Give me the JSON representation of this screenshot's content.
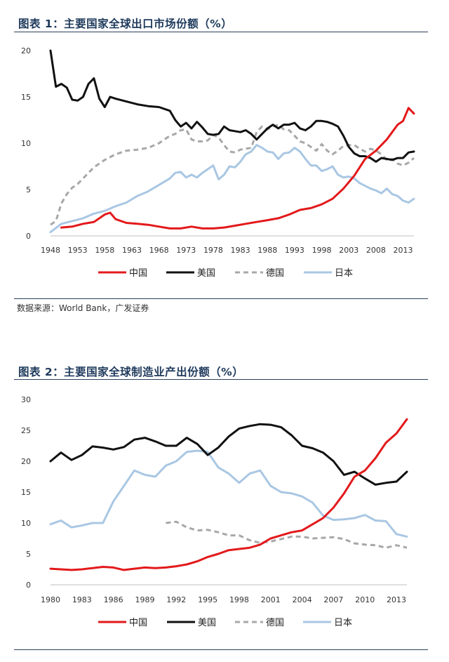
{
  "fig1": {
    "title": "图表 1：主要国家全球出口市场份额（%）",
    "source": "数据来源：World Bank，广发证券"
  },
  "fig2": {
    "title": "图表 2：主要国家全球制造业产出份额（%）"
  },
  "colors": {
    "china": "#e3191b",
    "usa": "#111111",
    "germany": "#a8a8a8",
    "japan": "#a9c7e3",
    "rule": "#2a3f5a",
    "title": "#1f3a5c"
  },
  "chart_data": [
    {
      "type": "line",
      "title": "图表 1：主要国家全球出口市场份额（%）",
      "xlim": [
        1948,
        2015
      ],
      "ylim": [
        0,
        20
      ],
      "x_ticks": [
        "1948",
        "1953",
        "1958",
        "1963",
        "1968",
        "1973",
        "1978",
        "1983",
        "1988",
        "1993",
        "1998",
        "2003",
        "2008",
        "2013"
      ],
      "y_ticks": [
        "0",
        "5",
        "10",
        "15",
        "20"
      ],
      "legend_position": "bottom",
      "series": [
        {
          "name": "中国",
          "color": "#e3191b",
          "dash": "solid",
          "x": [
            1950,
            1952,
            1954,
            1956,
            1958,
            1959,
            1960,
            1962,
            1964,
            1966,
            1968,
            1970,
            1972,
            1974,
            1976,
            1978,
            1980,
            1982,
            1984,
            1986,
            1988,
            1990,
            1992,
            1994,
            1996,
            1998,
            2000,
            2002,
            2004,
            2006,
            2008,
            2010,
            2012,
            2013,
            2014,
            2015
          ],
          "y": [
            0.9,
            1.0,
            1.3,
            1.5,
            2.3,
            2.5,
            1.8,
            1.4,
            1.3,
            1.2,
            1.0,
            0.8,
            0.8,
            1.0,
            0.8,
            0.8,
            0.9,
            1.1,
            1.3,
            1.5,
            1.7,
            1.9,
            2.3,
            2.8,
            3.0,
            3.4,
            4.0,
            5.1,
            6.5,
            8.3,
            9.2,
            10.4,
            12.0,
            12.4,
            13.8,
            13.2
          ]
        },
        {
          "name": "美国",
          "color": "#111111",
          "dash": "solid",
          "x": [
            1948,
            1949,
            1950,
            1951,
            1952,
            1953,
            1954,
            1955,
            1956,
            1957,
            1958,
            1959,
            1960,
            1962,
            1964,
            1966,
            1968,
            1970,
            1971,
            1972,
            1973,
            1974,
            1975,
            1976,
            1977,
            1978,
            1979,
            1980,
            1981,
            1982,
            1983,
            1984,
            1985,
            1986,
            1987,
            1988,
            1989,
            1990,
            1991,
            1992,
            1993,
            1994,
            1995,
            1996,
            1997,
            1998,
            1999,
            2000,
            2001,
            2002,
            2003,
            2004,
            2005,
            2006,
            2007,
            2008,
            2009,
            2010,
            2011,
            2012,
            2013,
            2014,
            2015
          ],
          "y": [
            20.0,
            16.1,
            16.4,
            16.0,
            14.7,
            14.6,
            15.0,
            16.4,
            17.0,
            14.8,
            13.9,
            15.0,
            14.8,
            14.5,
            14.2,
            14.0,
            13.9,
            13.5,
            12.5,
            11.8,
            12.2,
            11.6,
            12.3,
            11.7,
            11.0,
            10.9,
            11.0,
            11.8,
            11.4,
            11.3,
            11.2,
            11.4,
            11.0,
            10.4,
            11.0,
            11.6,
            12.0,
            11.6,
            12.0,
            12.0,
            12.2,
            11.6,
            11.4,
            11.8,
            12.4,
            12.4,
            12.3,
            12.1,
            11.8,
            10.8,
            9.6,
            8.9,
            8.6,
            8.6,
            8.4,
            8.0,
            8.4,
            8.3,
            8.2,
            8.4,
            8.4,
            9.0,
            9.1
          ]
        },
        {
          "name": "德国",
          "color": "#a8a8a8",
          "dash": "dashed",
          "x": [
            1948,
            1949,
            1950,
            1951,
            1952,
            1953,
            1954,
            1955,
            1956,
            1957,
            1958,
            1960,
            1962,
            1964,
            1966,
            1968,
            1970,
            1971,
            1972,
            1973,
            1974,
            1975,
            1976,
            1977,
            1978,
            1979,
            1980,
            1981,
            1982,
            1983,
            1984,
            1985,
            1986,
            1987,
            1988,
            1989,
            1990,
            1991,
            1992,
            1993,
            1994,
            1995,
            1996,
            1997,
            1998,
            1999,
            2000,
            2001,
            2002,
            2003,
            2004,
            2005,
            2006,
            2007,
            2008,
            2009,
            2010,
            2011,
            2012,
            2013,
            2014,
            2015
          ],
          "y": [
            1.2,
            1.6,
            3.5,
            4.5,
            5.2,
            5.6,
            6.2,
            6.8,
            7.4,
            7.8,
            8.2,
            8.8,
            9.2,
            9.3,
            9.5,
            10.0,
            10.8,
            11.0,
            11.4,
            11.5,
            10.4,
            10.2,
            10.2,
            10.3,
            10.9,
            10.6,
            9.8,
            9.1,
            9.0,
            9.3,
            9.4,
            9.5,
            11.2,
            11.8,
            11.5,
            11.8,
            12.0,
            11.5,
            11.4,
            10.8,
            10.2,
            10.0,
            9.6,
            9.2,
            9.9,
            9.2,
            8.8,
            9.2,
            9.7,
            9.8,
            9.8,
            9.4,
            9.1,
            9.4,
            9.2,
            8.8,
            8.2,
            8.3,
            7.8,
            7.6,
            7.9,
            8.4
          ]
        },
        {
          "name": "日本",
          "color": "#a9c7e3",
          "dash": "solid",
          "x": [
            1948,
            1950,
            1952,
            1954,
            1956,
            1958,
            1960,
            1962,
            1964,
            1966,
            1968,
            1970,
            1971,
            1972,
            1973,
            1974,
            1975,
            1976,
            1977,
            1978,
            1979,
            1980,
            1981,
            1982,
            1983,
            1984,
            1985,
            1986,
            1987,
            1988,
            1989,
            1990,
            1991,
            1992,
            1993,
            1994,
            1995,
            1996,
            1997,
            1998,
            1999,
            2000,
            2001,
            2002,
            2003,
            2004,
            2005,
            2006,
            2007,
            2008,
            2009,
            2010,
            2011,
            2012,
            2013,
            2014,
            2015
          ],
          "y": [
            0.4,
            1.3,
            1.6,
            1.9,
            2.4,
            2.7,
            3.2,
            3.6,
            4.3,
            4.8,
            5.5,
            6.2,
            6.8,
            6.9,
            6.3,
            6.6,
            6.3,
            6.8,
            7.2,
            7.6,
            6.1,
            6.6,
            7.5,
            7.4,
            8.0,
            8.8,
            9.1,
            9.8,
            9.5,
            9.1,
            9.0,
            8.3,
            8.9,
            9.0,
            9.5,
            9.1,
            8.3,
            7.6,
            7.6,
            7.0,
            7.2,
            7.5,
            6.6,
            6.3,
            6.4,
            6.2,
            5.7,
            5.4,
            5.1,
            4.9,
            4.6,
            5.1,
            4.5,
            4.3,
            3.8,
            3.6,
            4.0
          ]
        }
      ]
    },
    {
      "type": "line",
      "title": "图表 2：主要国家全球制造业产出份额（%）",
      "xlim": [
        1980,
        2014
      ],
      "ylim": [
        0,
        30
      ],
      "x_ticks": [
        "1980",
        "1983",
        "1986",
        "1989",
        "1992",
        "1995",
        "1998",
        "2001",
        "2004",
        "2007",
        "2010",
        "2013"
      ],
      "y_ticks": [
        "0",
        "5",
        "10",
        "15",
        "20",
        "25",
        "30"
      ],
      "legend_position": "bottom",
      "series": [
        {
          "name": "中国",
          "color": "#e3191b",
          "dash": "solid",
          "x": [
            1980,
            1981,
            1982,
            1983,
            1984,
            1985,
            1986,
            1987,
            1988,
            1989,
            1990,
            1991,
            1992,
            1993,
            1994,
            1995,
            1996,
            1997,
            1998,
            1999,
            2000,
            2001,
            2002,
            2003,
            2004,
            2005,
            2006,
            2007,
            2008,
            2009,
            2010,
            2011,
            2012,
            2013,
            2014
          ],
          "y": [
            2.6,
            2.5,
            2.4,
            2.5,
            2.7,
            2.9,
            2.8,
            2.4,
            2.6,
            2.8,
            2.7,
            2.8,
            3.0,
            3.3,
            3.8,
            4.5,
            5.0,
            5.6,
            5.8,
            6.0,
            6.5,
            7.5,
            8.0,
            8.5,
            8.8,
            9.8,
            10.8,
            12.5,
            14.8,
            17.5,
            18.5,
            20.5,
            23.0,
            24.5,
            26.8
          ]
        },
        {
          "name": "美国",
          "color": "#111111",
          "dash": "solid",
          "x": [
            1980,
            1981,
            1982,
            1983,
            1984,
            1985,
            1986,
            1987,
            1988,
            1989,
            1990,
            1991,
            1992,
            1993,
            1994,
            1995,
            1996,
            1997,
            1998,
            1999,
            2000,
            2001,
            2002,
            2003,
            2004,
            2005,
            2006,
            2007,
            2008,
            2009,
            2010,
            2011,
            2012,
            2013,
            2014
          ],
          "y": [
            20.0,
            21.4,
            20.2,
            21.0,
            22.4,
            22.2,
            21.9,
            22.3,
            23.5,
            23.8,
            23.2,
            22.5,
            22.5,
            23.8,
            22.8,
            21.0,
            22.2,
            24.0,
            25.3,
            25.7,
            26.0,
            25.9,
            25.5,
            24.2,
            22.5,
            22.1,
            21.4,
            20.0,
            17.8,
            18.3,
            17.2,
            16.2,
            16.5,
            16.7,
            18.3
          ]
        },
        {
          "name": "德国",
          "color": "#a8a8a8",
          "dash": "dashed",
          "x": [
            1991,
            1992,
            1993,
            1994,
            1995,
            1996,
            1997,
            1998,
            1999,
            2000,
            2001,
            2002,
            2003,
            2004,
            2005,
            2006,
            2007,
            2008,
            2009,
            2010,
            2011,
            2012,
            2013,
            2014
          ],
          "y": [
            10.0,
            10.2,
            9.3,
            8.8,
            8.9,
            8.5,
            8.0,
            8.0,
            7.2,
            6.8,
            7.0,
            7.4,
            7.8,
            7.8,
            7.5,
            7.6,
            7.7,
            7.4,
            6.7,
            6.5,
            6.4,
            6.0,
            6.4,
            6.0
          ]
        },
        {
          "name": "日本",
          "color": "#a9c7e3",
          "dash": "solid",
          "x": [
            1980,
            1981,
            1982,
            1983,
            1984,
            1985,
            1986,
            1987,
            1988,
            1989,
            1990,
            1991,
            1992,
            1993,
            1994,
            1995,
            1996,
            1997,
            1998,
            1999,
            2000,
            2001,
            2002,
            2003,
            2004,
            2005,
            2006,
            2007,
            2008,
            2009,
            2010,
            2011,
            2012,
            2013,
            2014
          ],
          "y": [
            9.8,
            10.4,
            9.3,
            9.6,
            10.0,
            10.0,
            13.5,
            16.0,
            18.5,
            17.8,
            17.5,
            19.3,
            20.0,
            21.5,
            21.7,
            21.5,
            19.0,
            18.0,
            16.5,
            18.0,
            18.5,
            16.0,
            15.0,
            14.8,
            14.3,
            13.3,
            11.2,
            10.5,
            10.6,
            10.8,
            11.3,
            10.4,
            10.3,
            8.2,
            7.8
          ]
        }
      ]
    }
  ]
}
